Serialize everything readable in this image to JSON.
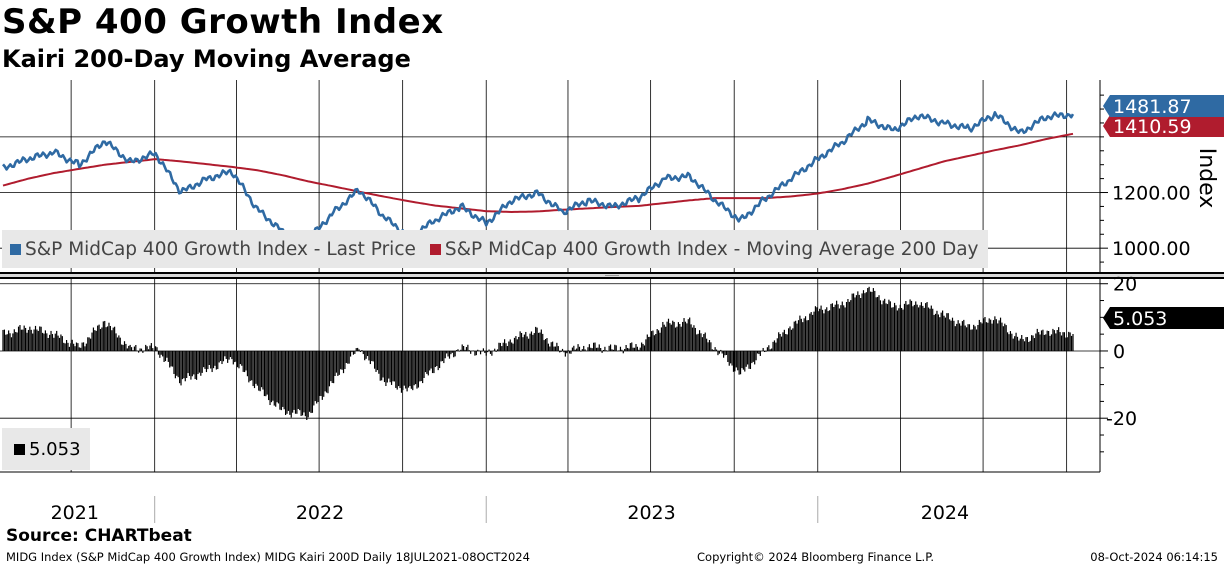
{
  "header": {
    "title": "S&P 400 Growth Index",
    "subtitle": "Kairi 200-Day Moving Average"
  },
  "source": "Source: CHARTbeat",
  "footer": {
    "left": "MIDG Index (S&P MidCap 400 Growth Index) MIDG Kairi 200D  Daily 18JUL2021-08OCT2024",
    "mid": "Copyright© 2024 Bloomberg Finance L.P.",
    "right": "08-Oct-2024 06:14:15"
  },
  "colors": {
    "price": "#2f6aa3",
    "ma": "#b01c2e",
    "kairi": "#000000"
  },
  "chart_data": [
    {
      "type": "line",
      "panel": "upper",
      "ylabel": "Index",
      "ylim": [
        900,
        1590
      ],
      "y_ticks": [
        1000,
        1200
      ],
      "y_tick_labels": [
        "1000.00",
        "1200.00"
      ],
      "x_range": [
        "2021-07-18",
        "2024-10-08"
      ],
      "x_labels": [
        "2021",
        "2022",
        "2023",
        "2024"
      ],
      "legend": [
        {
          "label": "S&P MidCap 400 Growth Index - Last Price",
          "color": "#2f6aa3"
        },
        {
          "label": "S&P MidCap 400 Growth Index - Moving Average 200 Day",
          "color": "#b01c2e"
        }
      ],
      "last_values": {
        "price": "1481.87",
        "ma": "1410.59"
      },
      "series": [
        {
          "name": "S&P MidCap 400 Growth Index - Last Price",
          "x": [
            "2021-07-18",
            "2021-08-15",
            "2021-09-12",
            "2021-10-10",
            "2021-11-07",
            "2021-12-05",
            "2022-01-02",
            "2022-01-30",
            "2022-02-27",
            "2022-03-27",
            "2022-04-24",
            "2022-05-22",
            "2022-06-19",
            "2022-07-17",
            "2022-08-14",
            "2022-09-11",
            "2022-10-09",
            "2022-11-06",
            "2022-12-04",
            "2023-01-01",
            "2023-01-29",
            "2023-02-26",
            "2023-03-26",
            "2023-04-23",
            "2023-05-21",
            "2023-06-18",
            "2023-07-16",
            "2023-08-13",
            "2023-09-10",
            "2023-10-08",
            "2023-11-05",
            "2023-12-03",
            "2023-12-31",
            "2024-01-28",
            "2024-02-25",
            "2024-03-24",
            "2024-04-21",
            "2024-05-19",
            "2024-06-16",
            "2024-07-14",
            "2024-08-11",
            "2024-09-08",
            "2024-10-08"
          ],
          "values": [
            1290,
            1320,
            1345,
            1300,
            1385,
            1310,
            1340,
            1200,
            1250,
            1275,
            1140,
            1060,
            1030,
            1130,
            1210,
            1110,
            1040,
            1100,
            1150,
            1090,
            1170,
            1200,
            1130,
            1170,
            1150,
            1180,
            1250,
            1260,
            1170,
            1100,
            1180,
            1250,
            1320,
            1380,
            1460,
            1425,
            1475,
            1450,
            1430,
            1480,
            1415,
            1470,
            1482
          ]
        },
        {
          "name": "S&P MidCap 400 Growth Index - Moving Average 200 Day",
          "x": [
            "2021-07-18",
            "2021-08-15",
            "2021-09-12",
            "2021-10-10",
            "2021-11-07",
            "2021-12-05",
            "2022-01-02",
            "2022-01-30",
            "2022-02-27",
            "2022-03-27",
            "2022-04-24",
            "2022-05-22",
            "2022-06-19",
            "2022-07-17",
            "2022-08-14",
            "2022-09-11",
            "2022-10-09",
            "2022-11-06",
            "2022-12-04",
            "2023-01-01",
            "2023-01-29",
            "2023-02-26",
            "2023-03-26",
            "2023-04-23",
            "2023-05-21",
            "2023-06-18",
            "2023-07-16",
            "2023-08-13",
            "2023-09-10",
            "2023-10-08",
            "2023-11-05",
            "2023-12-03",
            "2023-12-31",
            "2024-01-28",
            "2024-02-25",
            "2024-03-24",
            "2024-04-21",
            "2024-05-19",
            "2024-06-16",
            "2024-07-14",
            "2024-08-11",
            "2024-09-08",
            "2024-10-08"
          ],
          "values": [
            1225,
            1250,
            1270,
            1285,
            1300,
            1310,
            1320,
            1312,
            1302,
            1292,
            1280,
            1262,
            1240,
            1222,
            1203,
            1185,
            1168,
            1153,
            1143,
            1133,
            1130,
            1132,
            1138,
            1143,
            1148,
            1152,
            1162,
            1172,
            1180,
            1180,
            1180,
            1186,
            1196,
            1212,
            1232,
            1258,
            1285,
            1312,
            1332,
            1352,
            1370,
            1392,
            1411
          ]
        }
      ]
    },
    {
      "type": "bar",
      "panel": "lower",
      "name": "MIDG Kairi 200D",
      "ylim": [
        -36,
        22
      ],
      "y_ticks": [
        20,
        0,
        -20
      ],
      "y_tick_labels": [
        "20",
        "0",
        "-20"
      ],
      "last_value": "5.053",
      "legend": [
        {
          "label": "5.053",
          "color": "#000000"
        }
      ],
      "series": [
        {
          "x": [
            "2021-07-18",
            "2021-08-15",
            "2021-09-12",
            "2021-10-10",
            "2021-11-07",
            "2021-12-05",
            "2022-01-02",
            "2022-01-30",
            "2022-02-27",
            "2022-03-27",
            "2022-04-24",
            "2022-05-22",
            "2022-06-19",
            "2022-07-17",
            "2022-08-14",
            "2022-09-11",
            "2022-10-09",
            "2022-11-06",
            "2022-12-04",
            "2023-01-01",
            "2023-01-29",
            "2023-02-26",
            "2023-03-26",
            "2023-04-23",
            "2023-05-21",
            "2023-06-18",
            "2023-07-16",
            "2023-08-13",
            "2023-09-10",
            "2023-10-08",
            "2023-11-05",
            "2023-12-03",
            "2023-12-31",
            "2024-01-28",
            "2024-02-25",
            "2024-03-24",
            "2024-04-21",
            "2024-05-19",
            "2024-06-16",
            "2024-07-14",
            "2024-08-11",
            "2024-09-08",
            "2024-10-08"
          ],
          "values": [
            5,
            7,
            5,
            1,
            9,
            0.5,
            1,
            -9,
            -6,
            -2,
            -11,
            -18,
            -19,
            -9,
            1,
            -9,
            -12,
            -5,
            1,
            -1,
            3.5,
            6,
            -0.5,
            1.5,
            0.5,
            1.5,
            8,
            8.5,
            1,
            -7,
            0.5,
            7.5,
            12,
            14,
            18.5,
            13,
            14.5,
            10.5,
            7,
            10,
            3,
            6,
            5.05
          ]
        }
      ]
    }
  ]
}
